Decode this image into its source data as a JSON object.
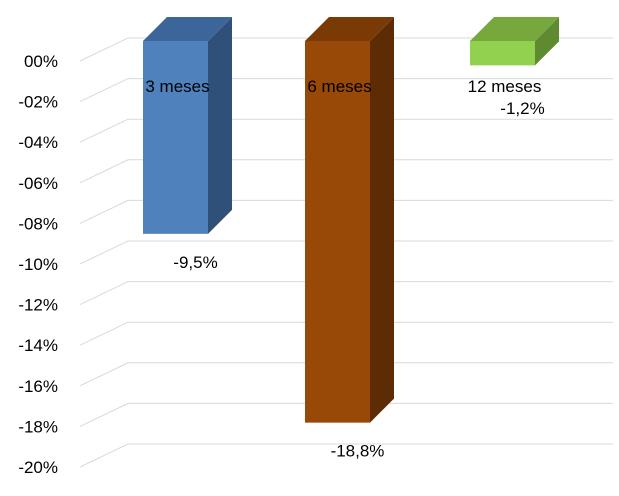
{
  "chart_data": {
    "type": "bar",
    "style": "3d-column",
    "categories": [
      "3 meses",
      "6 meses",
      "12 meses"
    ],
    "values": [
      -9.5,
      -18.8,
      -1.2
    ],
    "data_labels": [
      "-9,5%",
      "-18,8%",
      "-1,2%"
    ],
    "ylim": [
      -20,
      0
    ],
    "yticks": [
      0,
      -2,
      -4,
      -6,
      -8,
      -10,
      -12,
      -14,
      -16,
      -18,
      -20
    ],
    "ytick_labels": [
      "00%",
      "-02%",
      "-04%",
      "-06%",
      "-08%",
      "-10%",
      "-12%",
      "-14%",
      "-16%",
      "-18%",
      "-20%"
    ],
    "grid": true,
    "legend": "none",
    "colors": [
      {
        "front": "#4f81bd",
        "side": "#2f5079",
        "top": "#3c659a"
      },
      {
        "front": "#984807",
        "side": "#5e2c04",
        "top": "#7a3a05"
      },
      {
        "front": "#92d050",
        "side": "#5f8a2f",
        "top": "#76a83e"
      }
    ]
  }
}
